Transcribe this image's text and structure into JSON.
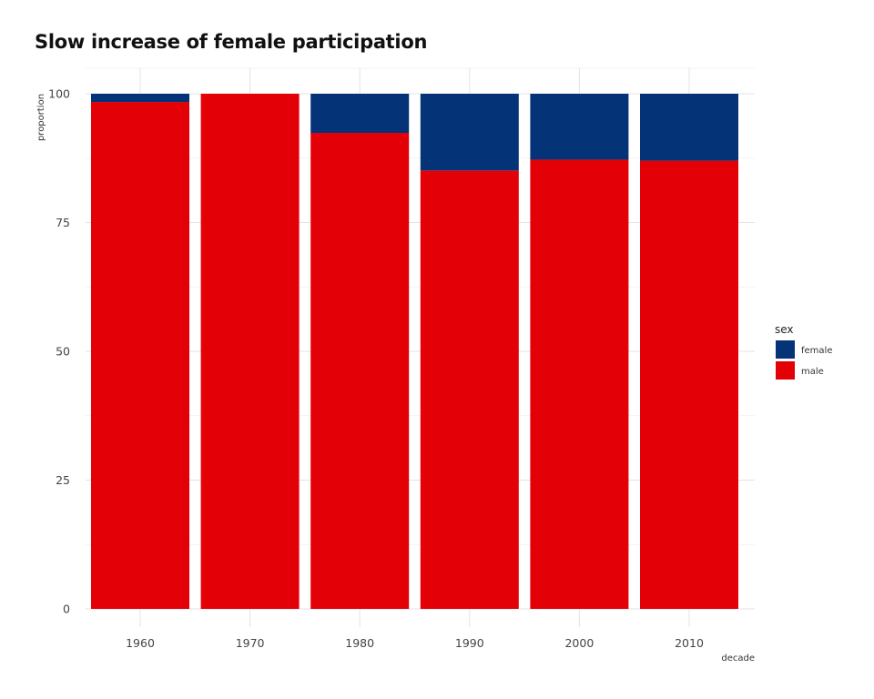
{
  "chart_data": {
    "type": "bar",
    "stacked": true,
    "title": "Slow increase of female participation",
    "xlabel": "decade",
    "ylabel": "proportion",
    "categories": [
      "1960",
      "1970",
      "1980",
      "1990",
      "2000",
      "2010"
    ],
    "ylim": [
      0,
      100
    ],
    "yticks": [
      0,
      25,
      50,
      75,
      100
    ],
    "grid": true,
    "legend": {
      "title": "sex",
      "position": "right"
    },
    "series": [
      {
        "name": "male",
        "color": "#e30007",
        "values": [
          98.4,
          100,
          92.4,
          85.1,
          87.2,
          87.0
        ]
      },
      {
        "name": "female",
        "color": "#053377",
        "values": [
          1.6,
          0,
          7.6,
          14.9,
          12.8,
          13.0
        ]
      }
    ]
  }
}
